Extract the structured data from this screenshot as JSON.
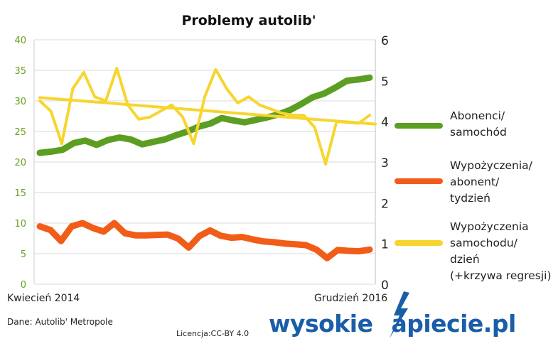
{
  "chart_data": {
    "type": "line",
    "title": "Problemy autolib'",
    "x_start_label": "Kwiecień 2014",
    "x_end_label": "Grudzień 2016",
    "y_left": {
      "ticks": [
        0,
        5,
        10,
        15,
        20,
        25,
        30,
        35,
        40
      ],
      "ylim": [
        0,
        40
      ],
      "color": "#6aa121"
    },
    "y_right": {
      "ticks": [
        0,
        1,
        2,
        3,
        4,
        5,
        6
      ],
      "ylim": [
        0,
        6
      ],
      "color": "#222222"
    },
    "grid": "horizontal",
    "legend_position": "right",
    "series": [
      {
        "name": "Abonenci/\nsamochód",
        "axis": "left",
        "color": "#5c9e21",
        "values": [
          21.5,
          21.7,
          22.0,
          23.1,
          23.5,
          22.8,
          23.6,
          24.0,
          23.7,
          22.9,
          23.3,
          23.7,
          24.4,
          25.0,
          25.8,
          26.3,
          27.2,
          26.8,
          26.5,
          26.9,
          27.3,
          27.8,
          28.5,
          29.5,
          30.6,
          31.2,
          32.2,
          33.3,
          33.5,
          33.8
        ]
      },
      {
        "name": "Wypożyczenia/\nabonent/\ntydzień",
        "axis": "right",
        "color": "#f25c19",
        "values": [
          1.42,
          1.33,
          1.06,
          1.42,
          1.5,
          1.38,
          1.29,
          1.5,
          1.25,
          1.2,
          1.2,
          1.21,
          1.22,
          1.12,
          0.9,
          1.18,
          1.32,
          1.19,
          1.14,
          1.16,
          1.1,
          1.05,
          1.03,
          1.0,
          0.98,
          0.96,
          0.85,
          0.64,
          0.84,
          0.82,
          0.81,
          0.85
        ]
      },
      {
        "name": "Wypożyczenia\nsamochodu/\ndzień\n(+krzywa regresji)",
        "axis": "right",
        "color": "#f7d52f",
        "values": [
          4.5,
          4.25,
          3.45,
          4.8,
          5.2,
          4.6,
          4.5,
          5.3,
          4.4,
          4.05,
          4.1,
          4.25,
          4.4,
          4.1,
          3.45,
          4.6,
          5.27,
          4.8,
          4.45,
          4.6,
          4.4,
          4.3,
          4.2,
          4.15,
          4.15,
          3.85,
          2.95,
          4.0,
          3.97,
          3.95,
          4.15
        ]
      }
    ],
    "regression": {
      "series": "Wypożyczenia samochodu/dzień",
      "axis": "right",
      "color": "#f7d52f",
      "start": 4.58,
      "end": 3.93
    }
  },
  "footer": {
    "source": "Dane: Autolib' Metropole",
    "license": "Licencja:CC-BY 4.0",
    "brand_left": "wysokie",
    "brand_right": "apiecie.pl",
    "brand_color": "#1a5ea8"
  }
}
